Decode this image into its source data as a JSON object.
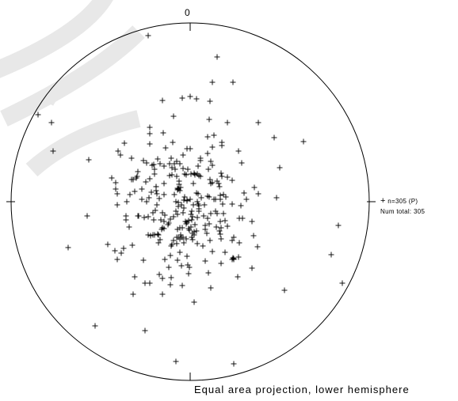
{
  "north_label": "0",
  "legend": {
    "symbol": "+",
    "count_label": "n=305 (P)",
    "total_label": "Num total: 305"
  },
  "caption": "Equal area projection, lower hemisphere",
  "colors": {
    "plot": "#000000",
    "watermark": "#e6e6e6",
    "background": "#ffffff"
  }
}
